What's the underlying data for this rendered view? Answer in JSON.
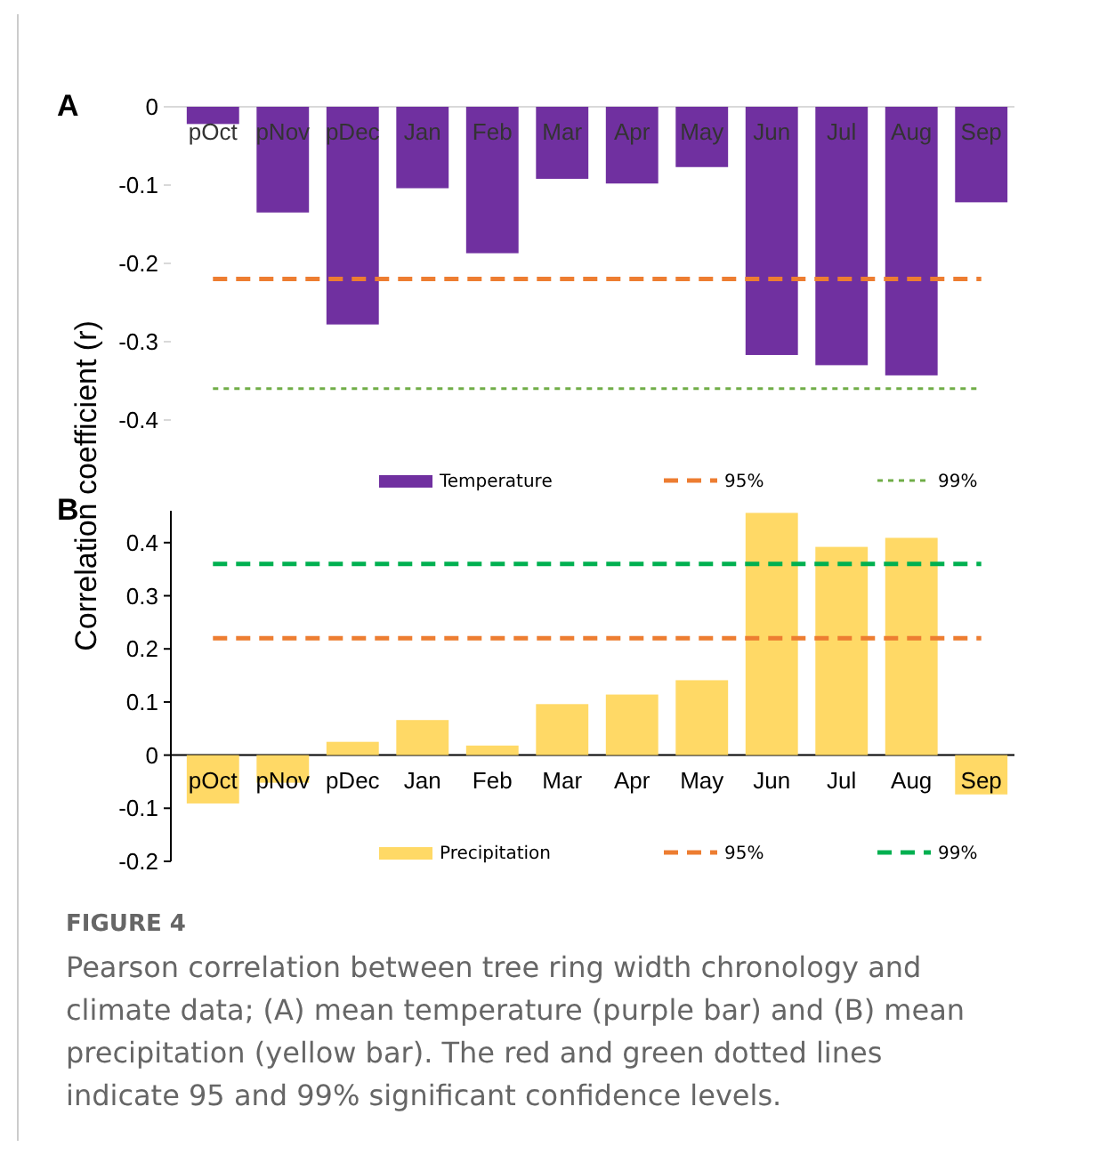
{
  "chart_data": [
    {
      "type": "bar",
      "title": "A",
      "ylabel": "Correlation coefficient (r)",
      "categories": [
        "pOct",
        "pNov",
        "pDec",
        "Jan",
        "Feb",
        "Mar",
        "Apr",
        "May",
        "Jun",
        "Jul",
        "Aug",
        "Sep"
      ],
      "series": [
        {
          "name": "Temperature",
          "color": "#7030a0",
          "values": [
            -0.022,
            -0.135,
            -0.278,
            -0.104,
            -0.187,
            -0.092,
            -0.098,
            -0.077,
            -0.317,
            -0.33,
            -0.343,
            -0.122
          ]
        },
        {
          "type": "line",
          "name": "95%",
          "color": "#ed7d31",
          "line_style": "dashed",
          "values": [
            -0.22,
            -0.22,
            -0.22,
            -0.22,
            -0.22,
            -0.22,
            -0.22,
            -0.22,
            -0.22,
            -0.22,
            -0.22,
            -0.22
          ]
        },
        {
          "type": "line",
          "name": "99%",
          "color": "#70ad47",
          "line_style": "dotted",
          "values": [
            -0.36,
            -0.36,
            -0.36,
            -0.36,
            -0.36,
            -0.36,
            -0.36,
            -0.36,
            -0.36,
            -0.36,
            -0.36,
            -0.36
          ]
        }
      ],
      "ylim": [
        -0.4,
        0
      ],
      "yticks": [
        -0.4,
        -0.3,
        -0.2,
        -0.1,
        0
      ],
      "legend": "bottom"
    },
    {
      "type": "bar",
      "title": "B",
      "categories": [
        "pOct",
        "pNov",
        "pDec",
        "Jan",
        "Feb",
        "Mar",
        "Apr",
        "May",
        "Jun",
        "Jul",
        "Aug",
        "Sep"
      ],
      "series": [
        {
          "name": "Precipitation",
          "color": "#ffd966",
          "values": [
            -0.091,
            -0.052,
            0.025,
            0.066,
            0.018,
            0.096,
            0.114,
            0.141,
            0.456,
            0.392,
            0.409,
            -0.074
          ]
        },
        {
          "type": "line",
          "name": "95%",
          "color": "#ed7d31",
          "line_style": "dashed",
          "values": [
            0.22,
            0.22,
            0.22,
            0.22,
            0.22,
            0.22,
            0.22,
            0.22,
            0.22,
            0.22,
            0.22,
            0.22
          ]
        },
        {
          "type": "line",
          "name": "99%",
          "color": "#00b050",
          "line_style": "dashed",
          "values": [
            0.36,
            0.36,
            0.36,
            0.36,
            0.36,
            0.36,
            0.36,
            0.36,
            0.36,
            0.36,
            0.36,
            0.36
          ]
        }
      ],
      "ylim": [
        -0.2,
        0.46
      ],
      "yticks": [
        -0.2,
        -0.1,
        0,
        0.1,
        0.2,
        0.3,
        0.4
      ],
      "legend": "bottom",
      "annotations": [
        "FIGURE 4",
        "Pearson correlation between tree ring width chronology and climate data; (A) mean temperature (purple bar) and (B) mean precipitation (yellow bar). The red and green dotted lines indicate 95 and 99% significant confidence levels."
      ]
    }
  ]
}
